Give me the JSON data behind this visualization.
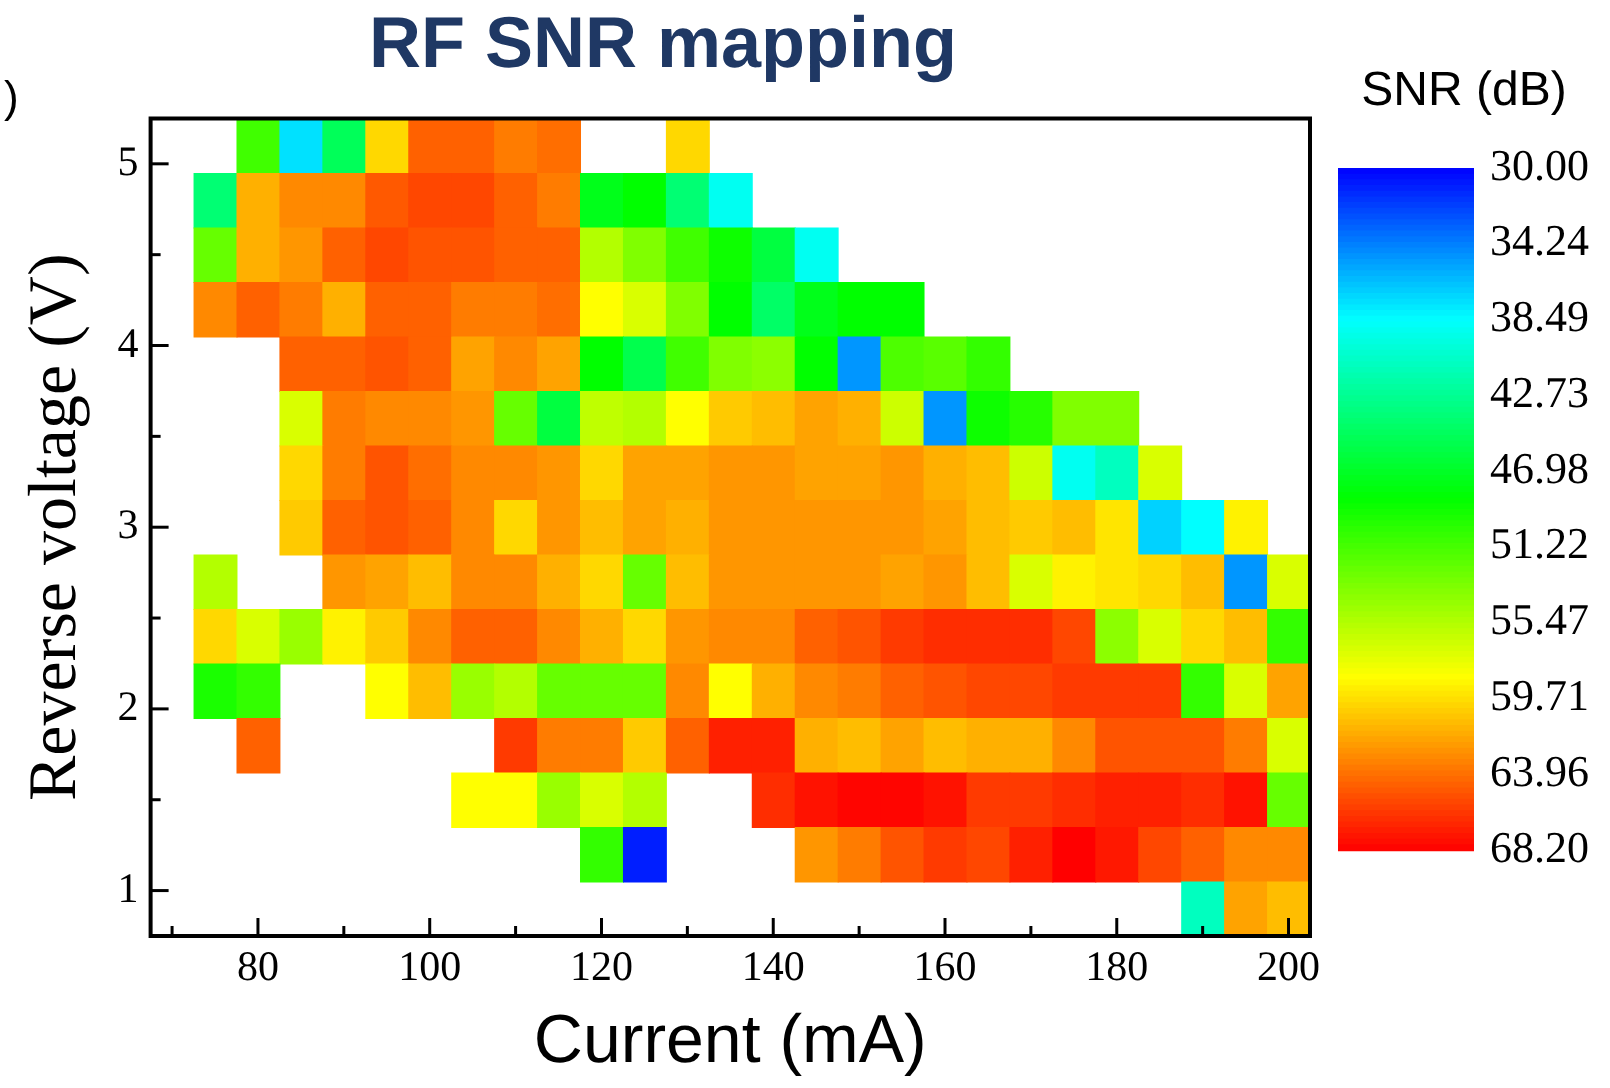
{
  "chart_data": {
    "type": "heatmap",
    "title": "RF SNR mapping",
    "xlabel": "Current (mA)",
    "ylabel": "Reverse voltage (V)",
    "clabel": "SNR (dB)",
    "annotations": [
      ")"
    ],
    "x": [
      75,
      80,
      85,
      90,
      95,
      100,
      105,
      110,
      115,
      120,
      125,
      130,
      135,
      140,
      145,
      150,
      155,
      160,
      165,
      170,
      175,
      180,
      185,
      190,
      195,
      200
    ],
    "y": [
      5.1,
      4.8,
      4.5,
      4.2,
      3.9,
      3.6,
      3.3,
      3.0,
      2.7,
      2.4,
      2.1,
      1.8,
      1.5,
      1.2,
      0.9
    ],
    "xlim": [
      67.5,
      202.5
    ],
    "ylim": [
      0.75,
      5.25
    ],
    "xticks": [
      {
        "value": 70,
        "label": null
      },
      80,
      {
        "value": 90,
        "label": null
      },
      100,
      {
        "value": 110,
        "label": null
      },
      120,
      {
        "value": 130,
        "label": null
      },
      140,
      {
        "value": 150,
        "label": null
      },
      160,
      {
        "value": 170,
        "label": null
      },
      180,
      {
        "value": 190,
        "label": null
      },
      200
    ],
    "yticks": [
      1,
      {
        "value": 1.5,
        "label": null
      },
      2,
      {
        "value": 2.5,
        "label": null
      },
      3,
      {
        "value": 3.5,
        "label": null
      },
      4,
      {
        "value": 4.5,
        "label": null
      },
      5
    ],
    "clim": [
      30,
      68.2
    ],
    "cticks": [
      {
        "value": 30,
        "label": "30.00"
      },
      34.24,
      38.49,
      42.73,
      46.98,
      51.22,
      55.47,
      59.71,
      63.96,
      {
        "value": 68.2,
        "label": "68.20"
      }
    ],
    "cells": [
      [
        null,
        51,
        37.5,
        45,
        60,
        64.5,
        64.5,
        63.5,
        64,
        null,
        null,
        60,
        null,
        null,
        null,
        null,
        null,
        null,
        null,
        null,
        null,
        null,
        null,
        null,
        null,
        null
      ],
      [
        44,
        61.5,
        63,
        63,
        64.8,
        65.5,
        65.5,
        64.5,
        63.5,
        47.5,
        48.5,
        44,
        39,
        null,
        null,
        null,
        null,
        null,
        null,
        null,
        null,
        null,
        null,
        null,
        null,
        null
      ],
      [
        52.5,
        61.5,
        62.5,
        64.5,
        65.5,
        65,
        65,
        64.5,
        64.5,
        55.5,
        53.5,
        51,
        49,
        46,
        39,
        null,
        null,
        null,
        null,
        null,
        null,
        null,
        null,
        null,
        null,
        null
      ],
      [
        63,
        64.5,
        63.5,
        61.5,
        64.5,
        64.5,
        63.5,
        63.5,
        64,
        58.5,
        57,
        53.5,
        48.5,
        44.5,
        47.5,
        48.5,
        48.5,
        null,
        null,
        null,
        null,
        null,
        null,
        null,
        null,
        null
      ],
      [
        null,
        null,
        64.5,
        64.5,
        65,
        64.5,
        62,
        63,
        62,
        48.5,
        45.5,
        51,
        53.5,
        54,
        48.5,
        35,
        51.5,
        52,
        50.5,
        null,
        null,
        null,
        null,
        null,
        null,
        null
      ],
      [
        null,
        null,
        57,
        63.5,
        63,
        63,
        62.5,
        52.5,
        46,
        56,
        55.5,
        58.5,
        60.5,
        61,
        62,
        61.5,
        56.5,
        35,
        49,
        50,
        53.5,
        53.5,
        null,
        null,
        null,
        null
      ],
      [
        null,
        null,
        60,
        63.5,
        65,
        64,
        63,
        63,
        62.5,
        60,
        62,
        62,
        62.5,
        62.5,
        62,
        62,
        62.5,
        61.5,
        61,
        56.5,
        39,
        41,
        57,
        null,
        null,
        null
      ],
      [
        null,
        null,
        60.5,
        64.5,
        65,
        64.5,
        63,
        60,
        62.5,
        61,
        62,
        61.5,
        62.5,
        62.5,
        62.5,
        62.5,
        62.5,
        62,
        61,
        60.5,
        61,
        59.5,
        37,
        38.5,
        59,
        null
      ],
      [
        55.5,
        null,
        null,
        62.5,
        62,
        61,
        63,
        63,
        61.5,
        60,
        52.5,
        61,
        62.5,
        62.5,
        62.5,
        62.5,
        62,
        62.5,
        61,
        57,
        59,
        59.5,
        60,
        61,
        35,
        57
      ],
      [
        60,
        57,
        54.5,
        59,
        60.5,
        63,
        64.5,
        64.5,
        63,
        61.5,
        60,
        62.5,
        63,
        63,
        64.5,
        65,
        66,
        66.5,
        66.5,
        66.5,
        65.5,
        54,
        57,
        60,
        61,
        50.5
      ],
      [
        49.5,
        50.5,
        null,
        null,
        58.5,
        61,
        54.5,
        55.5,
        52.5,
        52.5,
        52.5,
        63,
        58.5,
        61.5,
        63,
        63.5,
        64.5,
        65,
        65.5,
        65.5,
        66,
        66,
        66,
        50.5,
        57,
        62
      ],
      [
        null,
        64.5,
        null,
        null,
        null,
        null,
        null,
        66,
        63.5,
        63.5,
        60.5,
        64.5,
        67,
        67,
        61.5,
        61,
        62,
        61,
        61.5,
        61.5,
        63,
        65,
        65,
        65,
        63.5,
        57
      ],
      [
        null,
        null,
        null,
        null,
        null,
        null,
        58.5,
        58.5,
        54.5,
        57,
        55.5,
        null,
        null,
        66.5,
        67.5,
        68,
        68,
        67.5,
        66,
        66,
        66.5,
        67,
        67,
        66.5,
        67.5,
        52.5
      ],
      [
        null,
        null,
        null,
        null,
        null,
        null,
        null,
        null,
        null,
        50.5,
        31,
        null,
        null,
        null,
        62.5,
        63.5,
        65,
        66,
        65.5,
        67,
        68.2,
        67.3,
        65.5,
        64.5,
        63,
        63
      ],
      [
        null,
        null,
        null,
        null,
        null,
        null,
        null,
        null,
        null,
        null,
        null,
        null,
        null,
        null,
        null,
        null,
        null,
        null,
        null,
        null,
        null,
        null,
        null,
        41,
        62,
        61
      ]
    ]
  }
}
